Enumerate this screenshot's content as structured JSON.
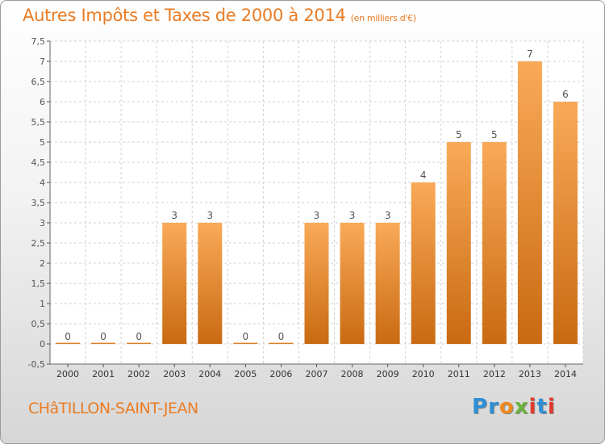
{
  "title": "Autres Impôts et Taxes de 2000 à 2014",
  "unit": "(en milliers d'€)",
  "commune": "CHâTILLON-SAINT-JEAN",
  "logo": {
    "letters": [
      "P",
      "r",
      "o",
      "x",
      "i",
      "t",
      "i"
    ],
    "colors": [
      "#2f8fd6",
      "#2f8fd6",
      "#f08a1e",
      "#6cb33e",
      "#e23b2e",
      "#2f8fd6",
      "#e23b2e"
    ]
  },
  "colors": {
    "bar_light": "#f9aa58",
    "bar_dark": "#c96a12",
    "accent": "#ea7c24",
    "grid": "#d0d0d0"
  },
  "chart_data": {
    "type": "bar",
    "categories": [
      "2000",
      "2001",
      "2002",
      "2003",
      "2004",
      "2005",
      "2006",
      "2007",
      "2008",
      "2009",
      "2010",
      "2011",
      "2012",
      "2013",
      "2014"
    ],
    "values": [
      0,
      0,
      0,
      3,
      3,
      0,
      0,
      3,
      3,
      3,
      4,
      5,
      5,
      7,
      6
    ],
    "data_labels": [
      "0",
      "0",
      "0",
      "3",
      "3",
      "0",
      "0",
      "3",
      "3",
      "3",
      "4",
      "5",
      "5",
      "7",
      "6"
    ],
    "yticks": [
      "-0,5",
      "0",
      "0,5",
      "1",
      "1,5",
      "2",
      "2,5",
      "3",
      "3,5",
      "4",
      "4,5",
      "5",
      "5,5",
      "6",
      "6,5",
      "7",
      "7,5"
    ],
    "ylim": [
      -0.5,
      7.5
    ],
    "grid": true,
    "legend": "none"
  }
}
